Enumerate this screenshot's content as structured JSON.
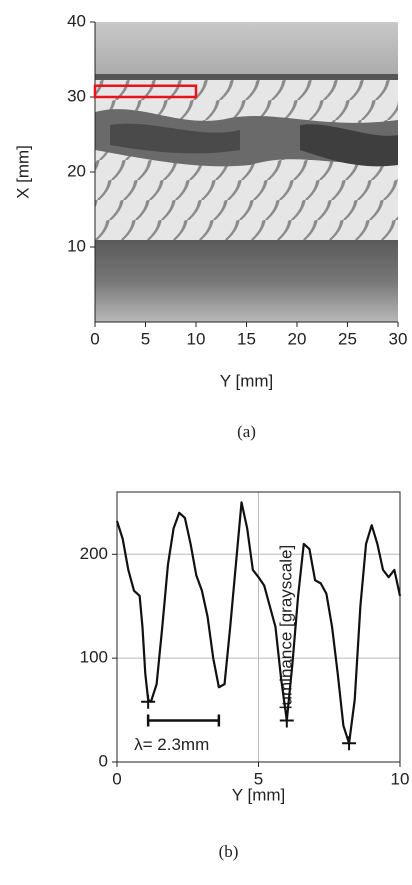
{
  "chart_data": [
    {
      "type": "image",
      "xlabel": "Y [mm]",
      "ylabel": "X [mm]",
      "caption": "(a)",
      "xlim": [
        0,
        30
      ],
      "ylim": [
        0,
        40
      ],
      "xticks": [
        0,
        5,
        10,
        15,
        20,
        25,
        30
      ],
      "yticks": [
        10,
        20,
        30,
        40
      ],
      "region": {
        "x": [
          0,
          10
        ],
        "y": [
          30,
          31.5
        ],
        "color": "#e8141c"
      }
    },
    {
      "type": "line",
      "xlabel": "Y [mm]",
      "ylabel": "luminance [grayscale]",
      "caption": "(b)",
      "xlim": [
        0,
        10
      ],
      "ylim": [
        0,
        260
      ],
      "xticks": [
        0,
        5,
        10
      ],
      "yticks": [
        0,
        100,
        200
      ],
      "grid": true,
      "x": [
        0,
        0.2,
        0.4,
        0.6,
        0.8,
        0.9,
        1.0,
        1.1,
        1.2,
        1.4,
        1.6,
        1.8,
        2.0,
        2.2,
        2.4,
        2.6,
        2.8,
        3.0,
        3.2,
        3.4,
        3.6,
        3.8,
        4.0,
        4.2,
        4.4,
        4.6,
        4.8,
        5.0,
        5.2,
        5.4,
        5.6,
        5.8,
        6.0,
        6.2,
        6.4,
        6.6,
        6.8,
        7.0,
        7.2,
        7.4,
        7.6,
        7.8,
        8.0,
        8.2,
        8.4,
        8.6,
        8.8,
        9.0,
        9.2,
        9.4,
        9.6,
        9.8,
        10.0
      ],
      "series": [
        {
          "color": "#111111",
          "values": [
            232,
            215,
            185,
            165,
            160,
            130,
            85,
            60,
            58,
            75,
            130,
            190,
            225,
            240,
            235,
            210,
            180,
            165,
            140,
            100,
            72,
            75,
            130,
            190,
            250,
            225,
            185,
            178,
            170,
            150,
            130,
            80,
            40,
            95,
            160,
            210,
            205,
            175,
            172,
            162,
            130,
            85,
            35,
            18,
            60,
            150,
            210,
            228,
            210,
            185,
            178,
            185,
            160
          ]
        }
      ],
      "markers": {
        "x": [
          1.1,
          6.0,
          8.2
        ],
        "y": [
          58,
          40,
          18
        ]
      },
      "annotation": {
        "text": "λ= 2.3mm",
        "x": [
          1.1,
          3.6
        ],
        "y": 40
      }
    }
  ]
}
